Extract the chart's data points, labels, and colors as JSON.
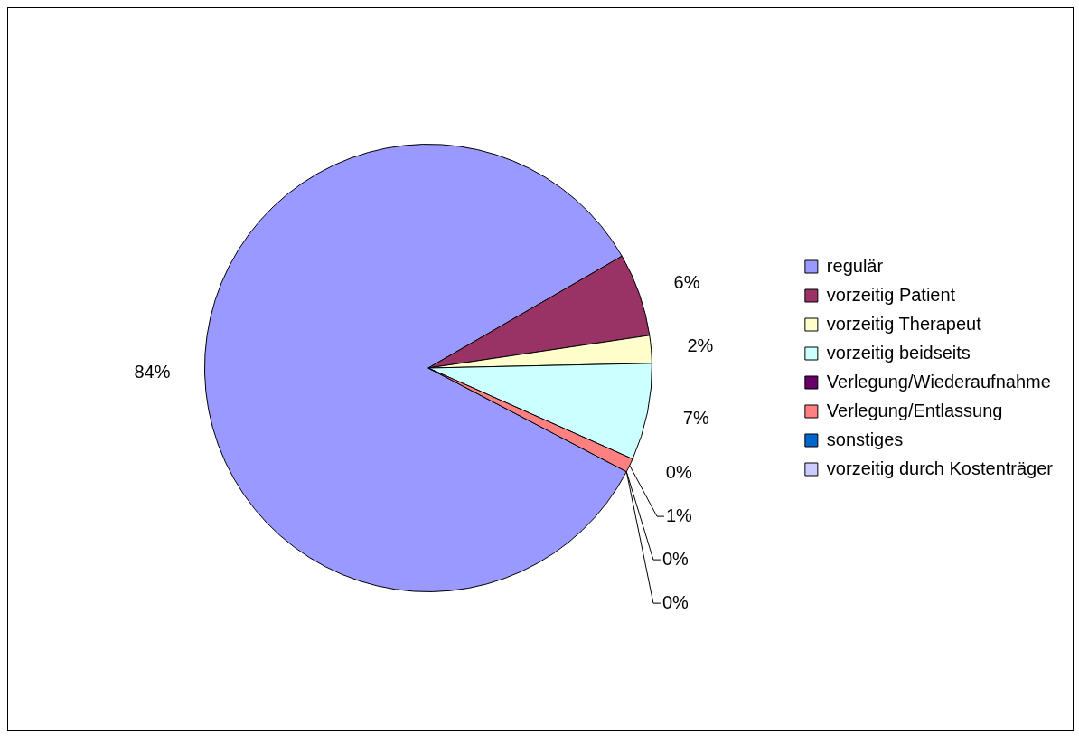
{
  "chart_data": {
    "type": "pie",
    "categories": [
      "regulär",
      "vorzeitig Patient",
      "vorzeitig Therapeut",
      "vorzeitig beidseits",
      "Verlegung/Wiederaufnahme",
      "Verlegung/Entlassung",
      "sonstiges",
      "vorzeitig durch Kostenträger"
    ],
    "values": [
      84,
      6,
      2,
      7,
      0,
      1,
      0,
      0
    ],
    "value_labels": [
      "84%",
      "6%",
      "2%",
      "7%",
      "0%",
      "1%",
      "0%",
      "0%"
    ],
    "colors": [
      "#9999ff",
      "#993366",
      "#ffffcc",
      "#ccffff",
      "#660066",
      "#ff8080",
      "#0066cc",
      "#ccccff"
    ],
    "legend": "right"
  }
}
